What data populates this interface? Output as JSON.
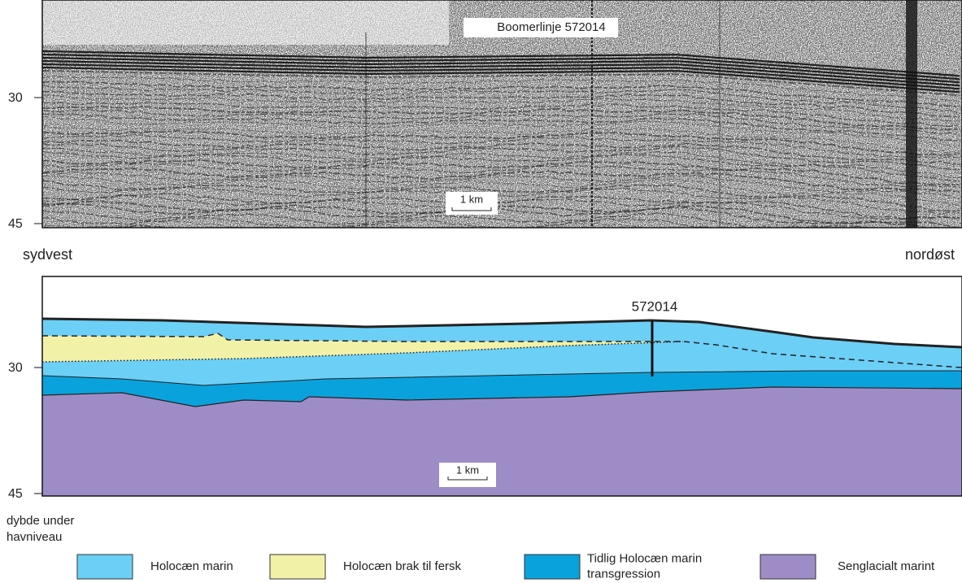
{
  "seismic": {
    "title": "Boomerlinje 572014",
    "scale_bar": "1 km",
    "depth_labels": [
      "30",
      "45"
    ]
  },
  "directions": {
    "left": "sydvest",
    "right": "nordøst"
  },
  "section": {
    "borehole": "572014",
    "scale_bar": "1 km",
    "depth_labels": [
      "30",
      "45"
    ],
    "depth_caption": [
      "dybde under",
      "havniveau"
    ]
  },
  "legend": [
    {
      "label": [
        "Holocæn marin"
      ],
      "color": "#6ccff6"
    },
    {
      "label": [
        "Holocæn brak til fersk"
      ],
      "color": "#f2f1a8"
    },
    {
      "label": [
        "Tidlig Holocæn marin",
        "transgression"
      ],
      "color": "#0aa2dc"
    },
    {
      "label": [
        "Senglacialt marint"
      ],
      "color": "#9e8cc6"
    }
  ]
}
